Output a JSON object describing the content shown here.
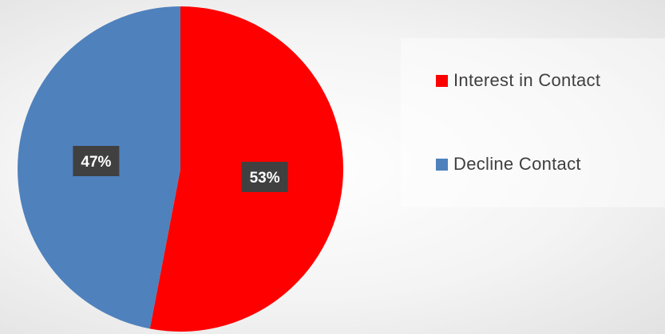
{
  "chart_data": {
    "type": "pie",
    "title": "",
    "series": [
      {
        "name": "Interest in Contact",
        "value": 53,
        "label": "53%",
        "color": "#ff0000"
      },
      {
        "name": "Decline Contact",
        "value": 47,
        "label": "47%",
        "color": "#4f81bd"
      }
    ],
    "legend": {
      "placement": "right"
    }
  }
}
